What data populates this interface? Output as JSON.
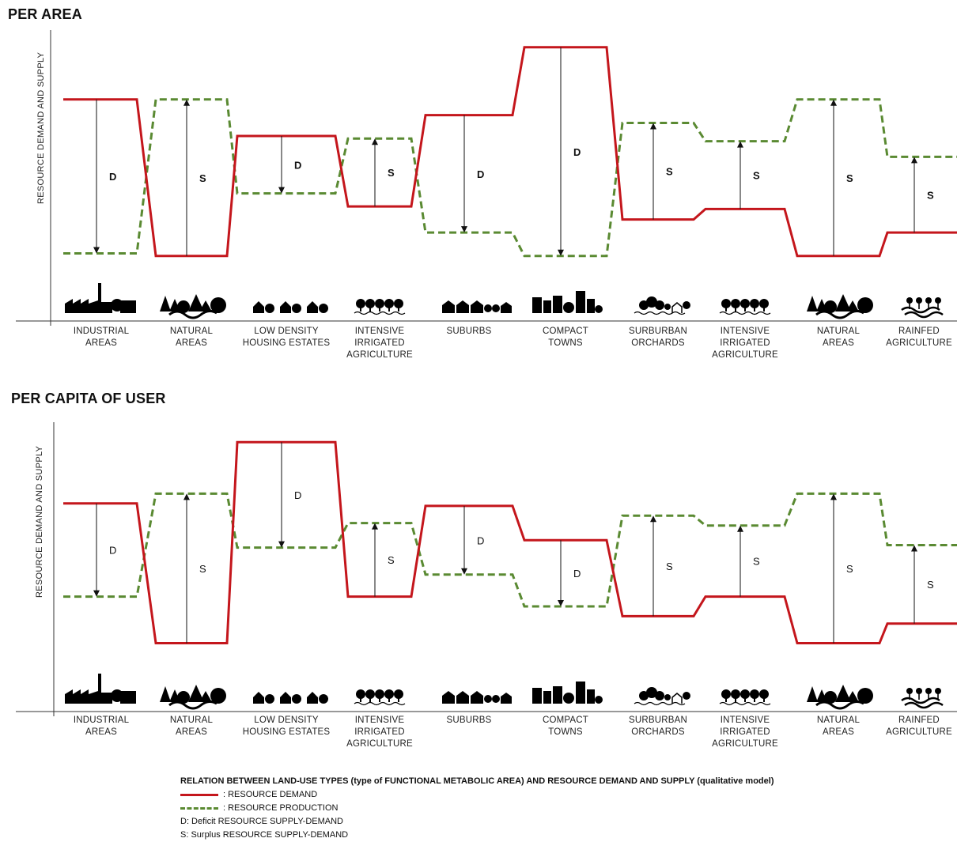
{
  "panels": [
    {
      "title": "PER AREA",
      "ylabel": "RESOURCE DEMAND AND SUPPLY",
      "categories": [
        "INDUSTRIAL\nAREAS",
        "NATURAL\nAREAS",
        "LOW DENSITY\nHOUSING ESTATES",
        "INTENSIVE\nIRRIGATED\nAGRICULTURE",
        "SUBURBS",
        "COMPACT\nTOWNS",
        "SURBURBAN\nORCHARDS",
        "INTENSIVE\nIRRIGATED\nAGRICULTURE",
        "NATURAL\nAREAS",
        "RAINFED\nAGRICULTURE"
      ],
      "markers": [
        "D",
        "S",
        "D",
        "S",
        "D",
        "D",
        "S",
        "S",
        "S",
        "S"
      ],
      "demand": [
        0.74,
        0.14,
        0.6,
        0.33,
        0.68,
        0.94,
        0.28,
        0.32,
        0.14,
        0.23
      ],
      "production": [
        0.15,
        0.74,
        0.38,
        0.59,
        0.23,
        0.14,
        0.65,
        0.58,
        0.74,
        0.52
      ]
    },
    {
      "title": "PER CAPITA OF USER",
      "ylabel": "RESOURCE DEMAND AND SUPPLY",
      "categories": [
        "INDUSTRIAL\nAREAS",
        "NATURAL\nAREAS",
        "LOW DENSITY\nHOUSING ESTATES",
        "INTENSIVE\nIRRIGATED\nAGRICULTURE",
        "SUBURBS",
        "COMPACT\nTOWNS",
        "SURBURBAN\nORCHARDS",
        "INTENSIVE\nIRRIGATED\nAGRICULTURE",
        "NATURAL\nAREAS",
        "RAINFED\nAGRICULTURE"
      ],
      "markers": [
        "D",
        "S",
        "D",
        "S",
        "D",
        "D",
        "S",
        "S",
        "S",
        "S"
      ],
      "demand": [
        0.72,
        0.15,
        0.97,
        0.34,
        0.71,
        0.57,
        0.26,
        0.34,
        0.15,
        0.23
      ],
      "production": [
        0.34,
        0.76,
        0.54,
        0.64,
        0.43,
        0.3,
        0.67,
        0.63,
        0.76,
        0.55
      ]
    }
  ],
  "icons": [
    "factory-icon",
    "forest-icon",
    "houses-icon",
    "crop-trees-icon",
    "suburb-houses-icon",
    "city-blocks-icon",
    "orchard-icon",
    "crop-trees-icon",
    "forest-icon",
    "rainfed-crop-icon"
  ],
  "legend": {
    "heading": "RELATION  BETWEEN  LAND-USE TYPES  (type of FUNCTIONAL METABOLIC AREA)  AND RESOURCE  DEMAND AND SUPPLY  (qualitative model)",
    "demand": ": RESOURCE  DEMAND",
    "production": ": RESOURCE  PRODUCTION",
    "deficit": "D: Deficit RESOURCE  SUPPLY-DEMAND",
    "surplus": "S: Surplus RESOURCE SUPPLY-DEMAND"
  },
  "colors": {
    "demand": "#c4161c",
    "production": "#5a8a32",
    "marker": "#111111"
  }
}
